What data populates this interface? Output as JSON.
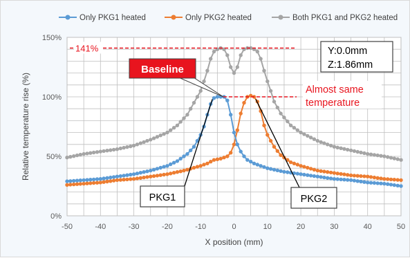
{
  "chart_data": {
    "type": "line",
    "title": "",
    "xlabel": "X position (mm)",
    "ylabel": "Relative temperature rise (%)",
    "xlim": [
      -50,
      50
    ],
    "ylim": [
      0,
      150
    ],
    "x_ticks": [
      "-50",
      "-40",
      "-30",
      "-20",
      "-10",
      "0",
      "10",
      "20",
      "30",
      "40",
      "50"
    ],
    "y_ticks": [
      "0%",
      "50%",
      "100%",
      "150%"
    ],
    "grid": true,
    "legend_position": "top",
    "series": [
      {
        "name": "Only PKG1 heated",
        "color": "#5b9bd5",
        "points": [
          [
            -50,
            29
          ],
          [
            -45,
            30
          ],
          [
            -40,
            31
          ],
          [
            -35,
            33
          ],
          [
            -30,
            35
          ],
          [
            -25,
            38
          ],
          [
            -20,
            42
          ],
          [
            -17,
            46
          ],
          [
            -14,
            52
          ],
          [
            -12,
            58
          ],
          [
            -10,
            68
          ],
          [
            -9,
            75
          ],
          [
            -8,
            85
          ],
          [
            -7,
            94
          ],
          [
            -6,
            99
          ],
          [
            -5,
            100
          ],
          [
            -4,
            100
          ],
          [
            -3,
            100
          ],
          [
            -2,
            97
          ],
          [
            -1,
            85
          ],
          [
            0,
            70
          ],
          [
            1,
            60
          ],
          [
            2,
            54
          ],
          [
            3,
            50
          ],
          [
            4,
            47
          ],
          [
            6,
            44
          ],
          [
            8,
            42
          ],
          [
            10,
            40
          ],
          [
            15,
            37
          ],
          [
            20,
            35
          ],
          [
            25,
            33
          ],
          [
            30,
            31
          ],
          [
            35,
            30
          ],
          [
            40,
            28
          ],
          [
            45,
            27
          ],
          [
            50,
            25
          ]
        ]
      },
      {
        "name": "Only PKG2 heated",
        "color": "#ed7d31",
        "points": [
          [
            -50,
            26
          ],
          [
            -45,
            27
          ],
          [
            -40,
            28
          ],
          [
            -35,
            30
          ],
          [
            -30,
            31
          ],
          [
            -25,
            33
          ],
          [
            -20,
            35
          ],
          [
            -15,
            38
          ],
          [
            -10,
            42
          ],
          [
            -8,
            44
          ],
          [
            -6,
            47
          ],
          [
            -4,
            48
          ],
          [
            -2,
            50
          ],
          [
            -1,
            53
          ],
          [
            0,
            60
          ],
          [
            1,
            72
          ],
          [
            2,
            86
          ],
          [
            3,
            95
          ],
          [
            4,
            100
          ],
          [
            5,
            101
          ],
          [
            6,
            100
          ],
          [
            7,
            96
          ],
          [
            8,
            88
          ],
          [
            9,
            76
          ],
          [
            10,
            68
          ],
          [
            12,
            58
          ],
          [
            14,
            51
          ],
          [
            17,
            45
          ],
          [
            20,
            42
          ],
          [
            25,
            38
          ],
          [
            30,
            36
          ],
          [
            35,
            34
          ],
          [
            40,
            33
          ],
          [
            45,
            31
          ],
          [
            50,
            30
          ]
        ]
      },
      {
        "name": "Both PKG1 and PKG2 heated",
        "color": "#a5a5a5",
        "points": [
          [
            -50,
            49
          ],
          [
            -45,
            52
          ],
          [
            -40,
            54
          ],
          [
            -35,
            56
          ],
          [
            -30,
            59
          ],
          [
            -25,
            64
          ],
          [
            -20,
            70
          ],
          [
            -17,
            76
          ],
          [
            -14,
            85
          ],
          [
            -12,
            95
          ],
          [
            -10,
            105
          ],
          [
            -9,
            113
          ],
          [
            -8,
            122
          ],
          [
            -7,
            132
          ],
          [
            -6,
            138
          ],
          [
            -5,
            140
          ],
          [
            -4,
            141
          ],
          [
            -3,
            140
          ],
          [
            -2,
            135
          ],
          [
            -1,
            125
          ],
          [
            0,
            120
          ],
          [
            1,
            125
          ],
          [
            2,
            135
          ],
          [
            3,
            140
          ],
          [
            4,
            141
          ],
          [
            5,
            141
          ],
          [
            6,
            140
          ],
          [
            7,
            138
          ],
          [
            8,
            132
          ],
          [
            9,
            122
          ],
          [
            10,
            113
          ],
          [
            11,
            105
          ],
          [
            12,
            96
          ],
          [
            14,
            86
          ],
          [
            17,
            76
          ],
          [
            20,
            70
          ],
          [
            25,
            63
          ],
          [
            30,
            58
          ],
          [
            35,
            55
          ],
          [
            40,
            52
          ],
          [
            45,
            50
          ],
          [
            50,
            47
          ]
        ]
      }
    ],
    "annotations": {
      "max_label": "141%",
      "max_value": 141,
      "baseline_label": "Baseline",
      "baseline_value": 100,
      "almost_same_label": [
        "Almost same",
        "temperature"
      ],
      "position_box": [
        "Y:0.0mm",
        "Z:1.86mm"
      ],
      "pkg1_label": "PKG1",
      "pkg1_point": [
        -5,
        100
      ],
      "pkg2_label": "PKG2",
      "pkg2_point": [
        5,
        100
      ]
    },
    "colors": {
      "annotation_red": "#e8141e",
      "grid": "#bfbfbf"
    }
  }
}
